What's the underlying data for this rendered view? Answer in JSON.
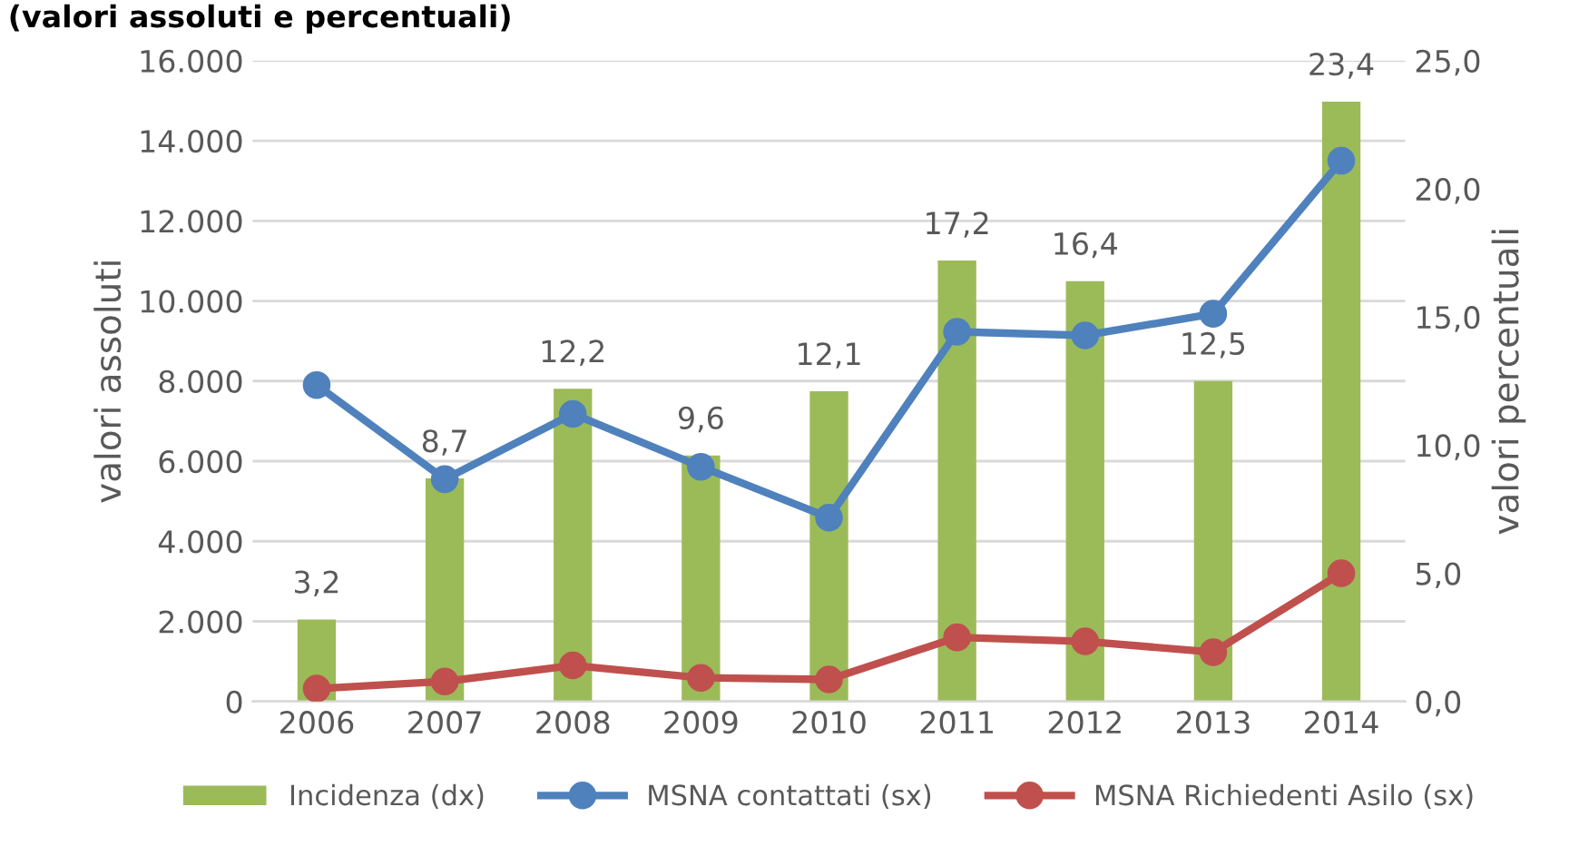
{
  "chart_data": {
    "type": "bar",
    "title": "(valori assoluti e percentuali)",
    "categories": [
      "2006",
      "2007",
      "2008",
      "2009",
      "2010",
      "2011",
      "2012",
      "2013",
      "2014"
    ],
    "ylabel": "valori assoluti",
    "y2label": "valori percentuali",
    "series": [
      {
        "name": "Incidenza (dx)",
        "axis": "y2",
        "color": "#9bbb59",
        "values": [
          3.2,
          8.7,
          12.2,
          9.6,
          12.1,
          17.2,
          16.4,
          12.5,
          23.4
        ],
        "value_labels": [
          "3,2",
          "8,7",
          "12,2",
          "9,6",
          "12,1",
          "17,2",
          "16,4",
          "12,5",
          "23,4"
        ]
      },
      {
        "name": "MSNA contattati (sx)",
        "type": "line",
        "color": "#4f81bd",
        "values": [
          7900,
          5550,
          7180,
          5860,
          4590,
          9230,
          9140,
          9680,
          13500
        ]
      },
      {
        "name": "MSNA Richiedenti Asilo (sx)",
        "type": "line",
        "color": "#c0504d",
        "values": [
          320,
          500,
          900,
          590,
          550,
          1600,
          1500,
          1230,
          3200
        ]
      }
    ],
    "ylim": [
      0,
      16000
    ],
    "yticks": [
      {
        "value": 0,
        "label": "0"
      },
      {
        "value": 2000,
        "label": "2.000"
      },
      {
        "value": 4000,
        "label": "4.000"
      },
      {
        "value": 6000,
        "label": "6.000"
      },
      {
        "value": 8000,
        "label": "8.000"
      },
      {
        "value": 10000,
        "label": "10.000"
      },
      {
        "value": 12000,
        "label": "12.000"
      },
      {
        "value": 14000,
        "label": "14.000"
      },
      {
        "value": 16000,
        "label": "16.000"
      }
    ],
    "y2lim": [
      0,
      25
    ],
    "y2ticks": [
      {
        "value": 0,
        "label": "0,0"
      },
      {
        "value": 5,
        "label": "5,0"
      },
      {
        "value": 10,
        "label": "10,0"
      },
      {
        "value": 15,
        "label": "15,0"
      },
      {
        "value": 20,
        "label": "20,0"
      },
      {
        "value": 25,
        "label": "25,0"
      }
    ],
    "grid": "y",
    "legend": "bottom",
    "marker": "circle",
    "line_style": "solid"
  }
}
